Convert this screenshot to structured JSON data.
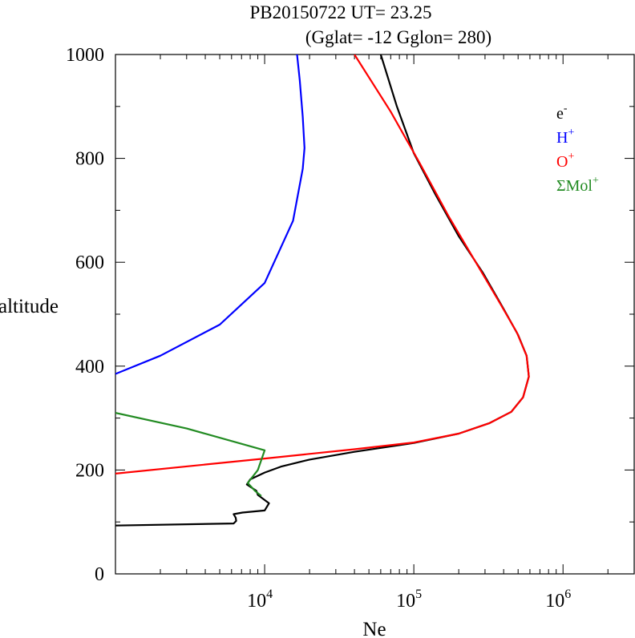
{
  "chart_data": {
    "type": "line",
    "title": "PB20150722   UT=  23.25",
    "subtitle": "(Gglat= -12   Gglon=  280)",
    "xlabel": "Ne",
    "ylabel": "altitude",
    "xscale": "log",
    "xlim": [
      1000,
      3000000
    ],
    "ylim": [
      0,
      1000
    ],
    "x_ticks": [
      {
        "value": 10000,
        "base": "10",
        "exp": "4"
      },
      {
        "value": 100000,
        "base": "10",
        "exp": "5"
      },
      {
        "value": 1000000,
        "base": "10",
        "exp": "6"
      }
    ],
    "y_ticks": [
      {
        "value": 0,
        "label": "0"
      },
      {
        "value": 200,
        "label": "200"
      },
      {
        "value": 400,
        "label": "400"
      },
      {
        "value": 600,
        "label": "600"
      },
      {
        "value": 800,
        "label": "800"
      },
      {
        "value": 1000,
        "label": "1000"
      }
    ],
    "legend_position": "top-right",
    "series": [
      {
        "name": "e-",
        "base": "e",
        "sup": "-",
        "color": "#000000",
        "points": [
          [
            1000,
            93
          ],
          [
            6200,
            97
          ],
          [
            6450,
            102
          ],
          [
            6400,
            108
          ],
          [
            6200,
            115
          ],
          [
            7100,
            118
          ],
          [
            10000,
            122
          ],
          [
            10700,
            136
          ],
          [
            9000,
            152
          ],
          [
            8800,
            160
          ],
          [
            7600,
            172
          ],
          [
            8000,
            182
          ],
          [
            10000,
            195
          ],
          [
            13000,
            207
          ],
          [
            20000,
            220
          ],
          [
            40000,
            235
          ],
          [
            100000,
            252
          ],
          [
            200000,
            270
          ],
          [
            320000,
            290
          ],
          [
            450000,
            312
          ],
          [
            540000,
            340
          ],
          [
            590000,
            380
          ],
          [
            570000,
            420
          ],
          [
            500000,
            460
          ],
          [
            400000,
            510
          ],
          [
            290000,
            580
          ],
          [
            200000,
            650
          ],
          [
            140000,
            730
          ],
          [
            100000,
            810
          ],
          [
            77000,
            900
          ],
          [
            60000,
            1000
          ]
        ]
      },
      {
        "name": "H+",
        "base": "H",
        "sup": "+",
        "color": "#0000ff",
        "points": [
          [
            1000,
            385
          ],
          [
            2000,
            420
          ],
          [
            5000,
            480
          ],
          [
            10000,
            560
          ],
          [
            15500,
            680
          ],
          [
            18000,
            780
          ],
          [
            18500,
            820
          ],
          [
            18000,
            880
          ],
          [
            17200,
            950
          ],
          [
            16500,
            1000
          ]
        ]
      },
      {
        "name": "O+",
        "base": "O",
        "sup": "+",
        "color": "#ff0000",
        "points": [
          [
            1000,
            193
          ],
          [
            10000,
            222
          ],
          [
            40000,
            240
          ],
          [
            100000,
            253
          ],
          [
            200000,
            270
          ],
          [
            320000,
            290
          ],
          [
            450000,
            312
          ],
          [
            540000,
            340
          ],
          [
            590000,
            380
          ],
          [
            570000,
            420
          ],
          [
            490000,
            465
          ],
          [
            380000,
            520
          ],
          [
            260000,
            600
          ],
          [
            170000,
            690
          ],
          [
            110000,
            790
          ],
          [
            70000,
            890
          ],
          [
            40000,
            1000
          ]
        ]
      },
      {
        "name": "ΣMol+",
        "base": "ΣMol",
        "sup": "+",
        "color": "#228b22",
        "points": [
          [
            1000,
            310
          ],
          [
            3000,
            280
          ],
          [
            10000,
            238
          ],
          [
            9000,
            200
          ],
          [
            7700,
            175
          ],
          [
            8600,
            160
          ],
          [
            9500,
            150
          ]
        ]
      }
    ]
  }
}
